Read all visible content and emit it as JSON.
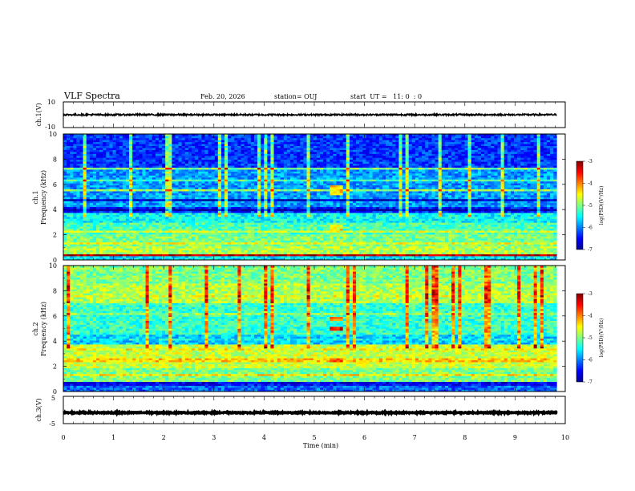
{
  "header": {
    "title": "VLF Spectra",
    "date": "Feb. 20, 2026",
    "station": "station= OUJ",
    "start_ut": "start  UT =   11: 0  : 0"
  },
  "chart_data": {
    "type": "heatmap",
    "title": "VLF Spectra",
    "xlabel": "Time (min)",
    "xlim": [
      0,
      10
    ],
    "x_ticks": [
      "0",
      "1",
      "2",
      "3",
      "4",
      "5",
      "6",
      "7",
      "8",
      "9",
      "10"
    ],
    "data_end_min": 9.83,
    "panels": [
      {
        "name": "ch.1 waveform",
        "type": "line",
        "ylabel": "ch.1(V)",
        "ylim": [
          -10,
          10
        ],
        "y_ticks": [
          "10",
          "-10"
        ],
        "trace_level_v": 0.0,
        "trace_spread_v": 0.6
      },
      {
        "name": "ch.1 spectrogram",
        "type": "heatmap",
        "ylabel_top": "ch.1",
        "ylabel": "Frequency (kHz)",
        "ylim": [
          0,
          10
        ],
        "y_ticks": [
          "0",
          "2",
          "4",
          "6",
          "8",
          "10"
        ],
        "base_log_psd": -5.7,
        "bands_khz_log_psd": [
          [
            0.0,
            0.5,
            -5.6
          ],
          [
            0.5,
            1.1,
            -4.8
          ],
          [
            1.1,
            2.1,
            -5.0
          ],
          [
            2.1,
            2.9,
            -5.2
          ],
          [
            2.9,
            3.7,
            -5.5
          ],
          [
            3.7,
            4.2,
            -6.4
          ],
          [
            4.2,
            7.2,
            -5.9
          ],
          [
            7.2,
            10.0,
            -6.3
          ]
        ],
        "lines_khz_log_psd": [
          [
            0.4,
            -3.2
          ],
          [
            1.4,
            -4.6
          ],
          [
            2.3,
            -4.7
          ],
          [
            4.05,
            -6.9
          ],
          [
            4.7,
            -6.8
          ],
          [
            5.6,
            -4.9
          ],
          [
            6.3,
            -5.2
          ],
          [
            7.3,
            -5.0
          ]
        ],
        "burst": {
          "t0_min": 5.3,
          "t1_min": 5.55,
          "f_khz": [
            [
              2.4,
              2.8,
              -4.4
            ],
            [
              5.1,
              5.9,
              -4.3
            ]
          ]
        }
      },
      {
        "name": "ch.2 spectrogram",
        "type": "heatmap",
        "ylabel_top": "ch.2",
        "ylabel": "Frequency (kHz)",
        "ylim": [
          0,
          10
        ],
        "y_ticks": [
          "0",
          "2",
          "4",
          "6",
          "8",
          "10"
        ],
        "base_log_psd": -5.2,
        "bands_khz_log_psd": [
          [
            0.0,
            0.4,
            -6.1
          ],
          [
            0.4,
            0.8,
            -6.6
          ],
          [
            0.8,
            1.9,
            -5.0
          ],
          [
            1.9,
            3.8,
            -4.7
          ],
          [
            3.8,
            4.6,
            -5.7
          ],
          [
            4.6,
            7.0,
            -5.3
          ],
          [
            7.0,
            8.6,
            -4.8
          ],
          [
            8.6,
            10.0,
            -5.0
          ]
        ],
        "lines_khz_log_psd": [
          [
            0.5,
            -6.5
          ],
          [
            1.3,
            -4.4
          ],
          [
            2.5,
            -4.3
          ],
          [
            3.3,
            -4.5
          ],
          [
            4.2,
            -5.5
          ],
          [
            6.1,
            -4.9
          ],
          [
            7.6,
            -4.6
          ]
        ],
        "burst": {
          "t0_min": 5.3,
          "t1_min": 5.55,
          "f_khz": [
            [
              2.4,
              2.7,
              -3.7
            ],
            [
              4.9,
              5.2,
              -3.4
            ],
            [
              5.6,
              5.9,
              -4.0
            ]
          ]
        }
      },
      {
        "name": "ch.3 waveform",
        "type": "line",
        "ylabel": "ch.3(V)",
        "ylim": [
          -5,
          5
        ],
        "y_ticks": [
          "5",
          "-5"
        ],
        "trace_level_v": -1.0,
        "trace_spread_v": 0.2
      }
    ],
    "colorbar": {
      "label": "log(PSD)(V²/Hz)",
      "range": [
        -7,
        -3
      ],
      "ticks": [
        "-3",
        "-4",
        "-5",
        "-6",
        "-7"
      ],
      "colors": [
        "#00008f",
        "#0000ff",
        "#0080ff",
        "#00ffff",
        "#80ff80",
        "#ffff00",
        "#ff8000",
        "#ff0000",
        "#800000"
      ]
    }
  }
}
